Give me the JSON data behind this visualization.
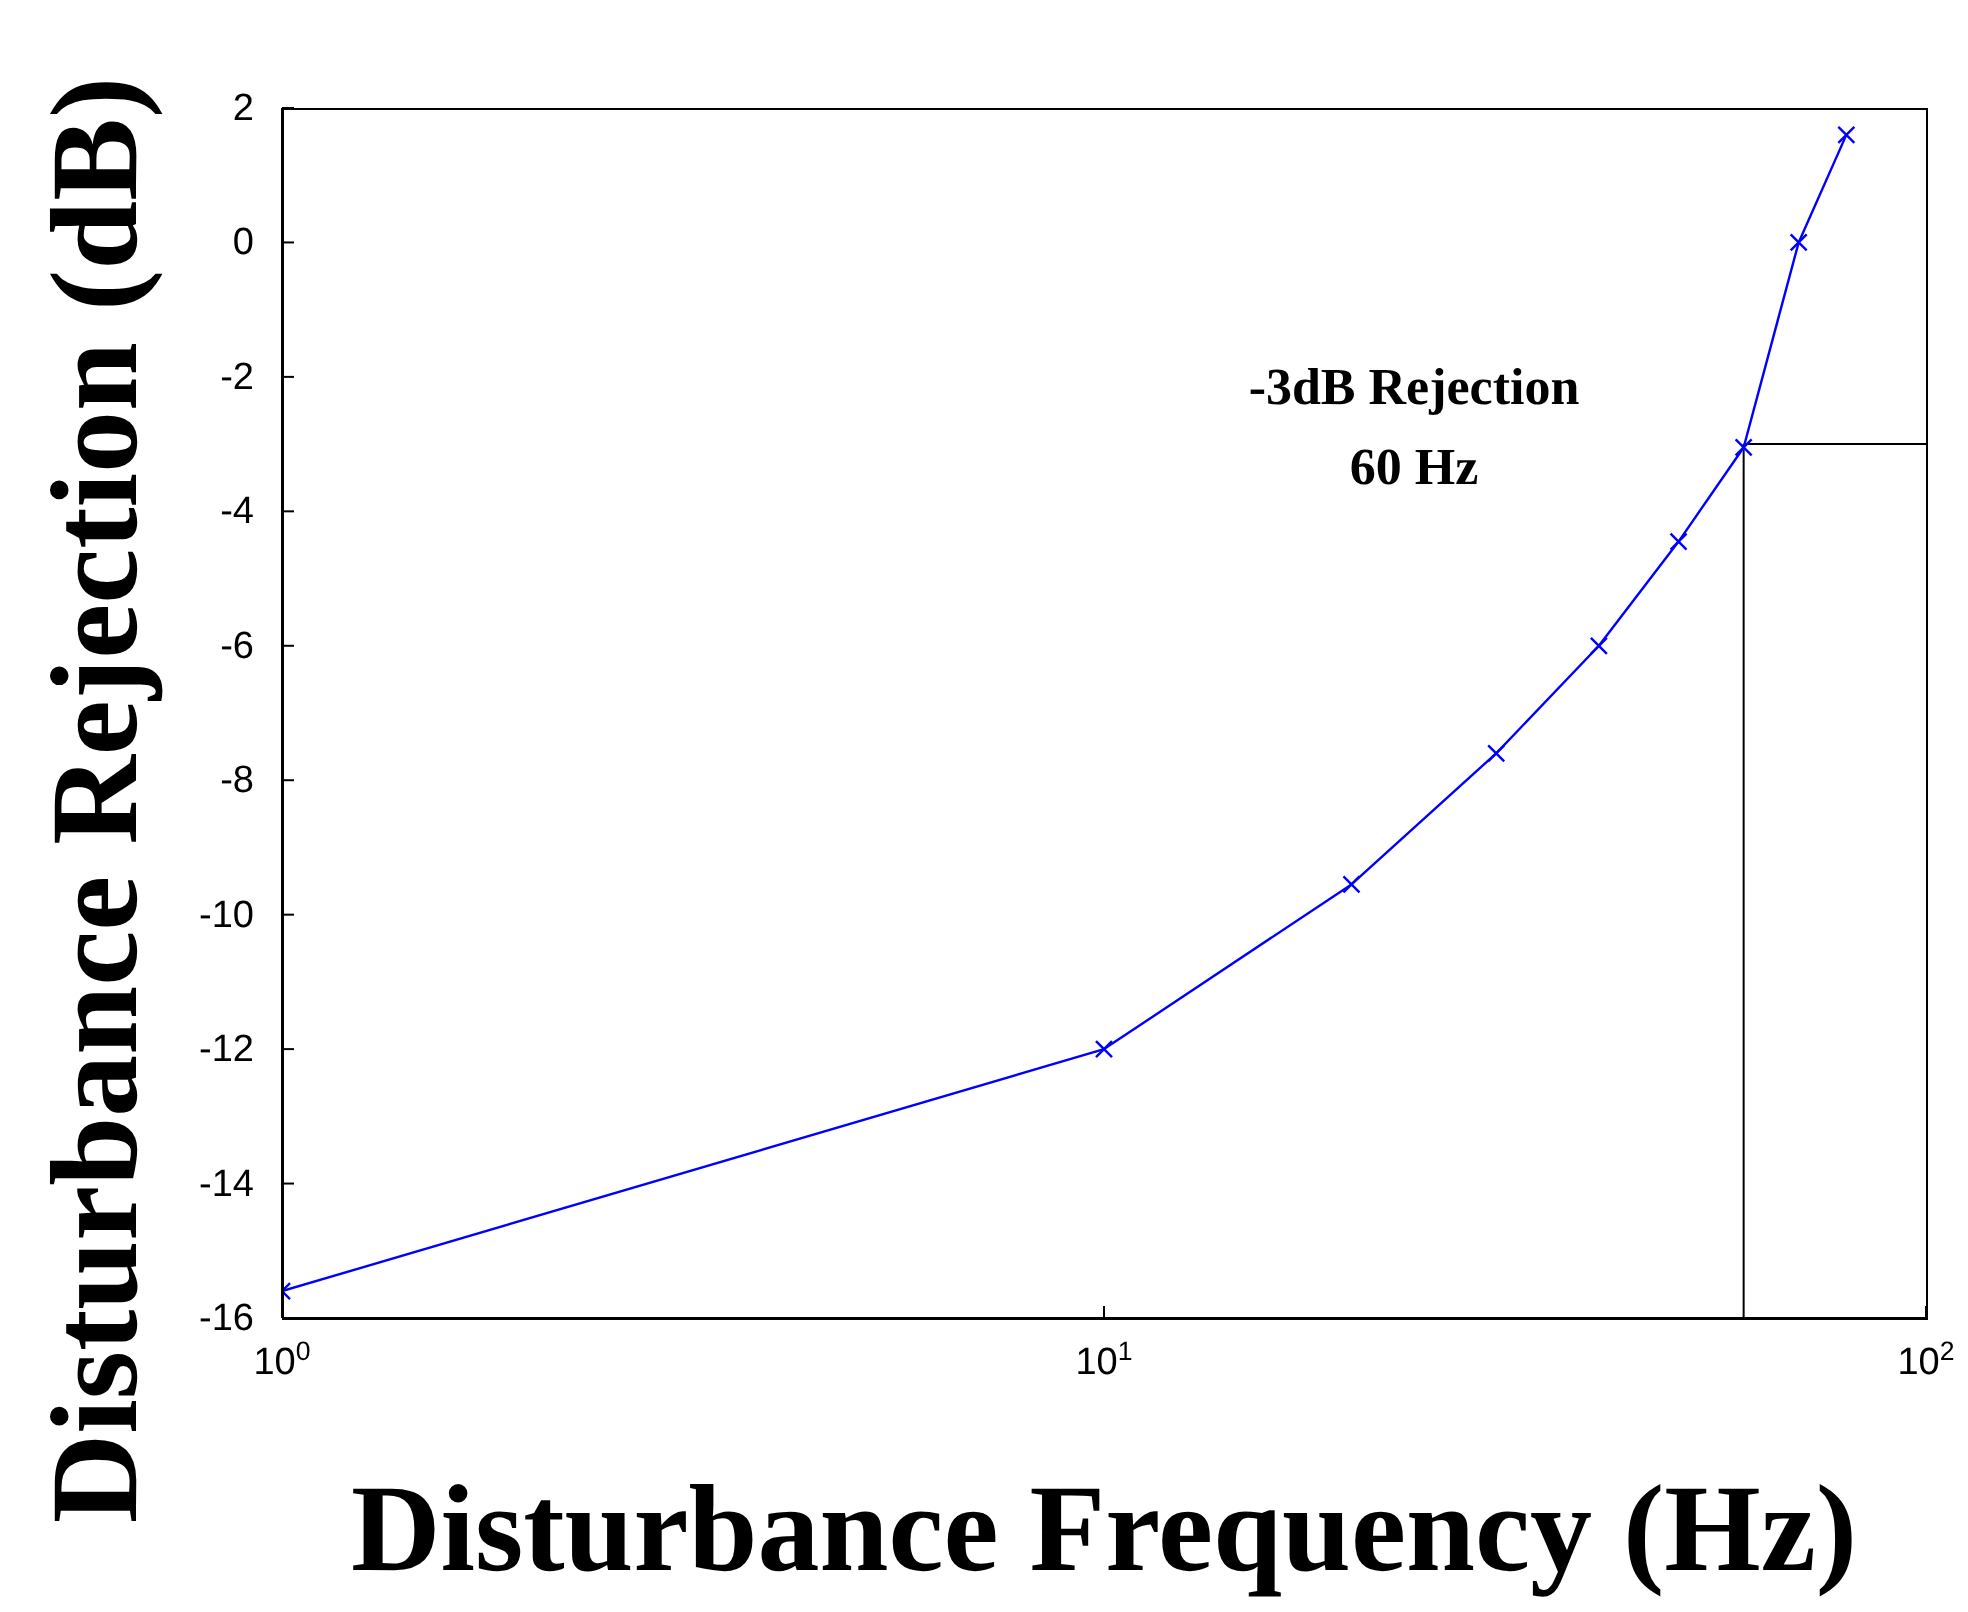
{
  "chart_data": {
    "type": "line",
    "xlabel": "Disturbance Frequency (Hz)",
    "ylabel": "Disturbance Rejection (dB)",
    "x": [
      1,
      10,
      20,
      30,
      40,
      50,
      60,
      70,
      80
    ],
    "series": [
      {
        "color": "#0000ff",
        "values": [
          -15.6,
          -12,
          -9.55,
          -7.6,
          -6,
          -4.45,
          -3.05,
          0,
          1.6
        ]
      }
    ],
    "log": "x",
    "marker": "cross",
    "grid": false,
    "legend": false,
    "xlim": [
      1,
      100
    ],
    "xticks": [
      {
        "value": 1,
        "label": "10$^{0}$"
      },
      {
        "value": 10,
        "label": "10$^{1}$"
      },
      {
        "value": 100,
        "label": "10$^{2}$"
      }
    ],
    "ylim": [
      -16,
      2
    ],
    "yticks": [
      -16,
      -14,
      -12,
      -10,
      -8,
      -6,
      -4,
      -2,
      0,
      2
    ],
    "ref_lines": [
      {
        "axis": "x",
        "value": 60
      },
      {
        "axis": "y",
        "value": -3
      }
    ],
    "annotations": [
      "-3dB Rejection\n60 Hz"
    ]
  }
}
